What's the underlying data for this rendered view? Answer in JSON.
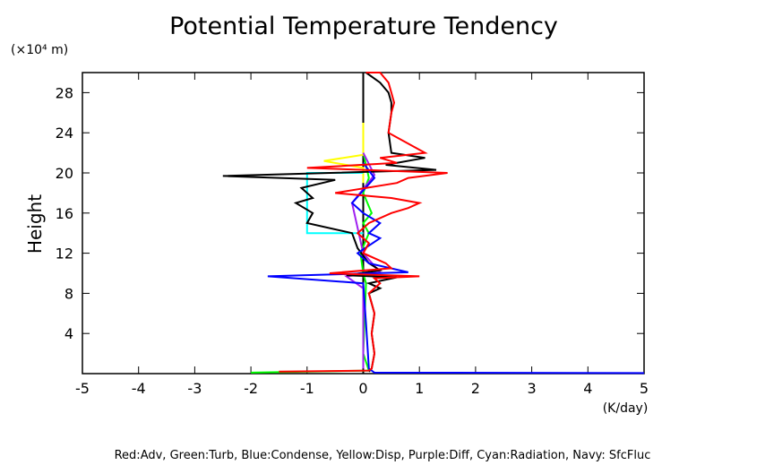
{
  "chart_data": {
    "type": "line",
    "title": "Potential Temperature Tendency",
    "y_unit": "(×10⁴ m)",
    "ylabel": "Height",
    "xlabel": "(K/day)",
    "legend_text": "Red:Adv, Green:Turb, Blue:Condense, Yellow:Disp, Purple:Diff, Cyan:Radiation, Navy: SfcFluc",
    "xlim": [
      -5,
      5
    ],
    "xticks": [
      -5,
      -4,
      -3,
      -2,
      -1,
      0,
      1,
      2,
      3,
      4,
      5
    ],
    "ylim": [
      0,
      30
    ],
    "yticks": [
      4,
      8,
      12,
      16,
      20,
      24,
      28
    ],
    "zero_line": true,
    "series": [
      {
        "color": "#00ff00",
        "x": [
          -2.0,
          0.1,
          0.0,
          0.05,
          0.0,
          -0.05,
          0.1,
          0.0,
          0.15,
          0.0,
          0.1,
          0.0
        ],
        "y": [
          0.1,
          0.3,
          2,
          9,
          10,
          12,
          14,
          15,
          16,
          18,
          19.5,
          22
        ]
      },
      {
        "color": "#ffff00",
        "x": [
          0.0,
          0.0,
          -0.7,
          0.0,
          0.0,
          0.0
        ],
        "y": [
          19,
          20.5,
          21.2,
          21.8,
          23,
          25
        ]
      },
      {
        "color": "#00ffff",
        "x": [
          0.0,
          -1.0,
          -1.0,
          0.0
        ],
        "y": [
          14,
          14,
          20,
          20
        ]
      },
      {
        "color": "#a020f0",
        "x": [
          0.0,
          0.0,
          -0.3,
          0.3,
          0.0,
          -0.2,
          0.2,
          0.0
        ],
        "y": [
          0.5,
          8.5,
          9.7,
          10.1,
          12,
          17,
          19.8,
          22
        ]
      },
      {
        "color": "#000000",
        "x": [
          0.1,
          0.15,
          0.2,
          0.15,
          0.2,
          0.1,
          0.3,
          0.1,
          0.6,
          -0.3,
          0.3,
          0.1,
          -0.1,
          -0.2,
          -1.0,
          -0.9,
          -1.2,
          -0.9,
          -1.1,
          -0.5,
          -2.5,
          1.3,
          0.4,
          1.1,
          0.5,
          0.45,
          0.5,
          0.5,
          0.45,
          0.3,
          0.05
        ],
        "y": [
          0.2,
          0.5,
          2,
          4,
          6,
          8,
          8.5,
          9,
          9.6,
          9.8,
          10.3,
          11,
          12.5,
          14,
          15,
          16,
          17,
          17.5,
          18.5,
          19.3,
          19.7,
          20.3,
          20.8,
          21.5,
          22,
          24,
          26,
          27,
          28,
          29,
          30
        ]
      },
      {
        "color": "#0000ff",
        "x": [
          5.0,
          0.2,
          0.1,
          0.05,
          0.0,
          -1.7,
          0.8,
          0.1,
          -0.1,
          0.3,
          0.1,
          0.3,
          0.0,
          -0.2,
          0.2,
          0.0
        ],
        "y": [
          0.05,
          0.1,
          0.5,
          5,
          9,
          9.7,
          10.1,
          11,
          12,
          13.5,
          14,
          15,
          16,
          17,
          19.5,
          21
        ]
      },
      {
        "color": "#ff0000",
        "x": [
          -1.5,
          0.1,
          0.15,
          0.2,
          0.15,
          0.2,
          0.1,
          0.2,
          0.3,
          0.2,
          1.0,
          -0.6,
          0.5,
          0.4,
          0.0,
          0.1,
          -0.1,
          0.1,
          0.5,
          0.8,
          1.0,
          0.5,
          -0.5,
          0.6,
          0.8,
          1.5,
          -1.0,
          0.6,
          0.3,
          1.1,
          0.45,
          0.5,
          0.55,
          0.5,
          0.45,
          0.3,
          0.05
        ],
        "y": [
          0.2,
          0.3,
          0.5,
          2,
          4,
          6,
          8,
          8.5,
          9,
          9.5,
          9.7,
          10,
          10.5,
          11,
          12,
          13,
          14,
          15,
          16,
          16.5,
          17,
          17.5,
          18,
          19,
          19.5,
          20,
          20.5,
          21,
          21.5,
          22,
          24,
          26,
          27,
          28,
          29,
          30,
          30
        ]
      }
    ]
  }
}
